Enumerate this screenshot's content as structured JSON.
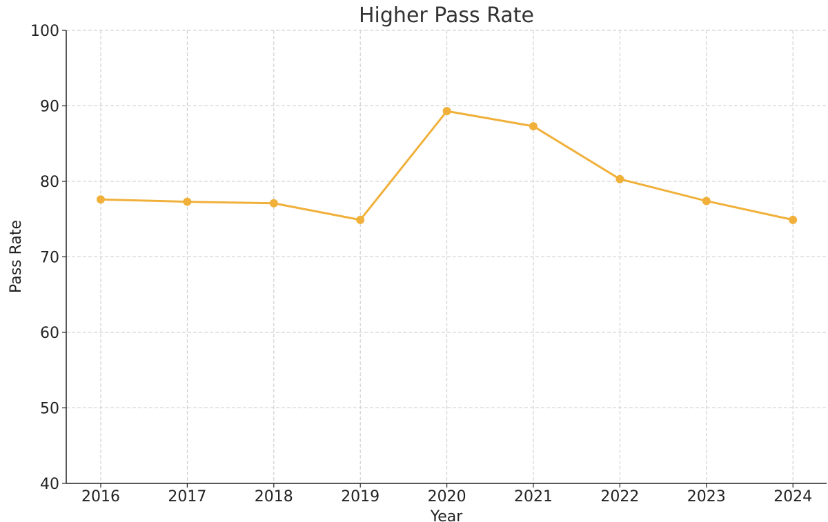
{
  "chart_data": {
    "type": "line",
    "title": "Higher Pass Rate",
    "xlabel": "Year",
    "ylabel": "Pass Rate",
    "x": [
      "2016",
      "2017",
      "2018",
      "2019",
      "2020",
      "2021",
      "2022",
      "2023",
      "2024"
    ],
    "series": [
      {
        "values": [
          77.6,
          77.3,
          77.1,
          74.9,
          89.3,
          87.3,
          80.3,
          77.4,
          74.9
        ],
        "color": "#f0b03a"
      }
    ],
    "ylim": [
      40,
      100
    ],
    "yticks": [
      40,
      50,
      60,
      70,
      80,
      90,
      100
    ],
    "grid": true,
    "legend": "none"
  }
}
